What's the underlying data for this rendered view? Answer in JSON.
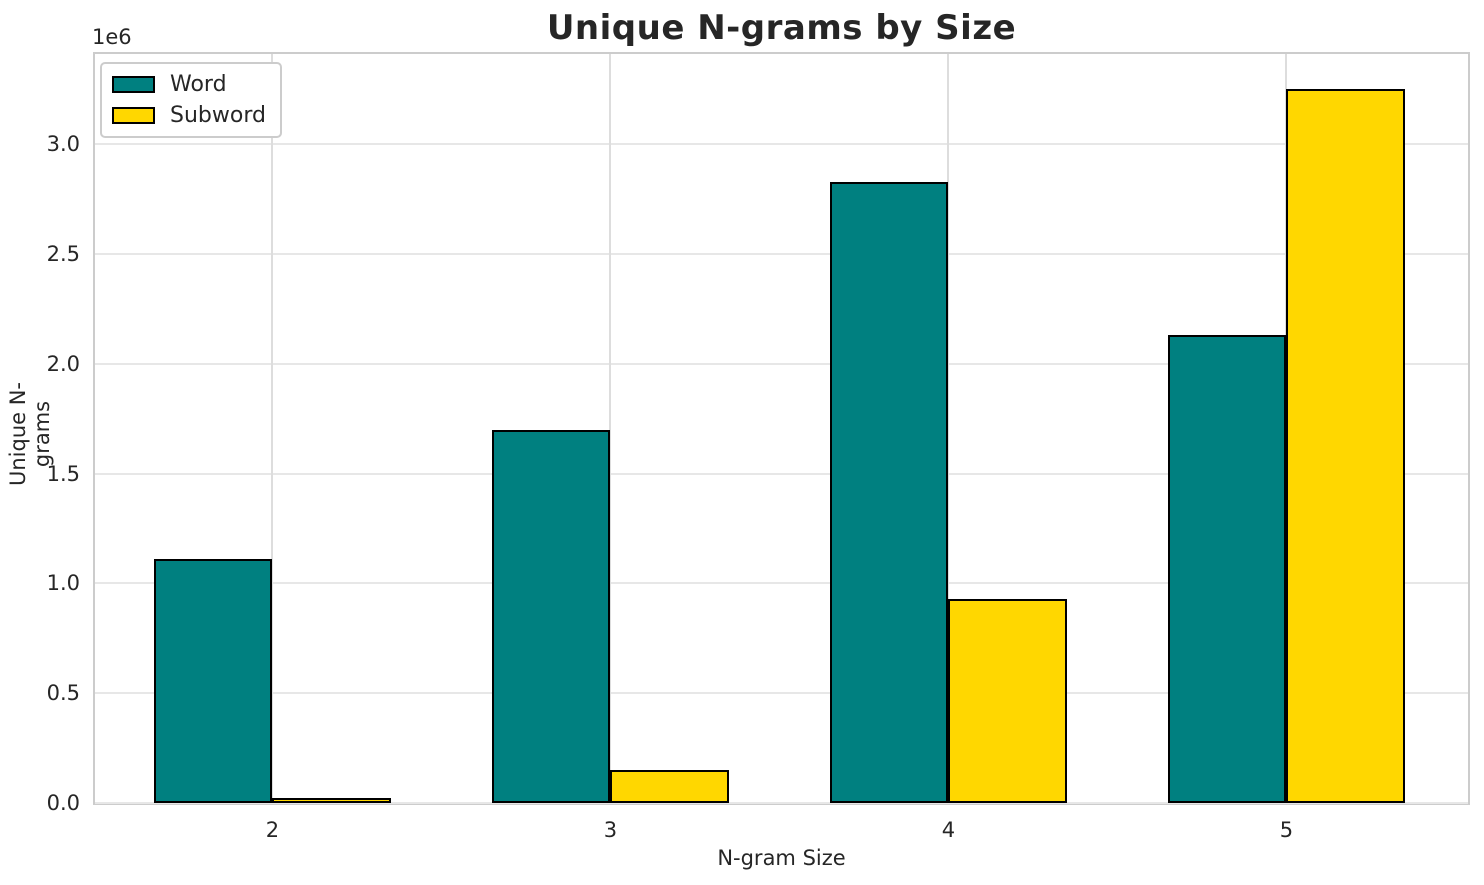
{
  "chart_data": {
    "type": "bar",
    "title": "Unique N-grams by Size",
    "xlabel": "N-gram Size",
    "ylabel": "Unique N-grams",
    "y_offset_text": "1e6",
    "categories": [
      2,
      3,
      4,
      5
    ],
    "xtick_labels": [
      "2",
      "3",
      "4",
      "5"
    ],
    "series": [
      {
        "name": "Word",
        "color": "#008080",
        "values": [
          1100000,
          1690000,
          2820000,
          2120000
        ]
      },
      {
        "name": "Subword",
        "color": "#FFD700",
        "values": [
          12000,
          140000,
          920000,
          3240000
        ]
      }
    ],
    "bar_edge_color": "#000000",
    "bar_width_data_units": 0.35,
    "group_layout": "word bar left of tick, subword bar right of tick",
    "xlim": [
      1.475,
      5.537
    ],
    "ylim": [
      0,
      3410000
    ],
    "yticks": [
      0,
      500000,
      1000000,
      1500000,
      2000000,
      2500000,
      3000000
    ],
    "ytick_labels": [
      "0.0",
      "0.5",
      "1.0",
      "1.5",
      "2.0",
      "2.5",
      "3.0"
    ],
    "grid": true,
    "grid_color": "#e7e7e7",
    "spine_color": "#cccccc",
    "background_color": "#ffffff",
    "text_color": "#262626",
    "legend_position": "upper-left"
  }
}
